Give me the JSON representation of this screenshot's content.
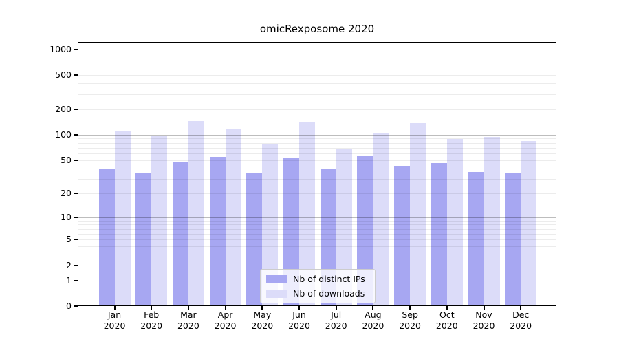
{
  "chart_data": {
    "type": "bar",
    "title": "omicRexposome 2020",
    "categories": [
      "Jan",
      "Feb",
      "Mar",
      "Apr",
      "May",
      "Jun",
      "Jul",
      "Aug",
      "Sep",
      "Oct",
      "Nov",
      "Dec"
    ],
    "category_year": "2020",
    "series": [
      {
        "name": "Nb of distinct IPs",
        "color": "#a7a7f2",
        "values": [
          40,
          35,
          48,
          55,
          35,
          53,
          40,
          56,
          43,
          46,
          36,
          35
        ]
      },
      {
        "name": "Nb of downloads",
        "color": "#dcdcf9",
        "values": [
          109,
          98,
          145,
          116,
          77,
          140,
          67,
          104,
          137,
          90,
          94,
          85
        ]
      }
    ],
    "xlabel": "",
    "ylabel": "",
    "yscale": "log1p",
    "y_ticks": [
      1000,
      500,
      200,
      100,
      50,
      20,
      10,
      5,
      2,
      1,
      0
    ],
    "ylim": [
      0,
      1230
    ],
    "grid": "on",
    "legend_position": "inside-bottom-center",
    "axis_color": "#000000",
    "grid_major_color": "#bdbdbd",
    "grid_minor_color": "#ececec",
    "background_color": "#ffffff"
  }
}
